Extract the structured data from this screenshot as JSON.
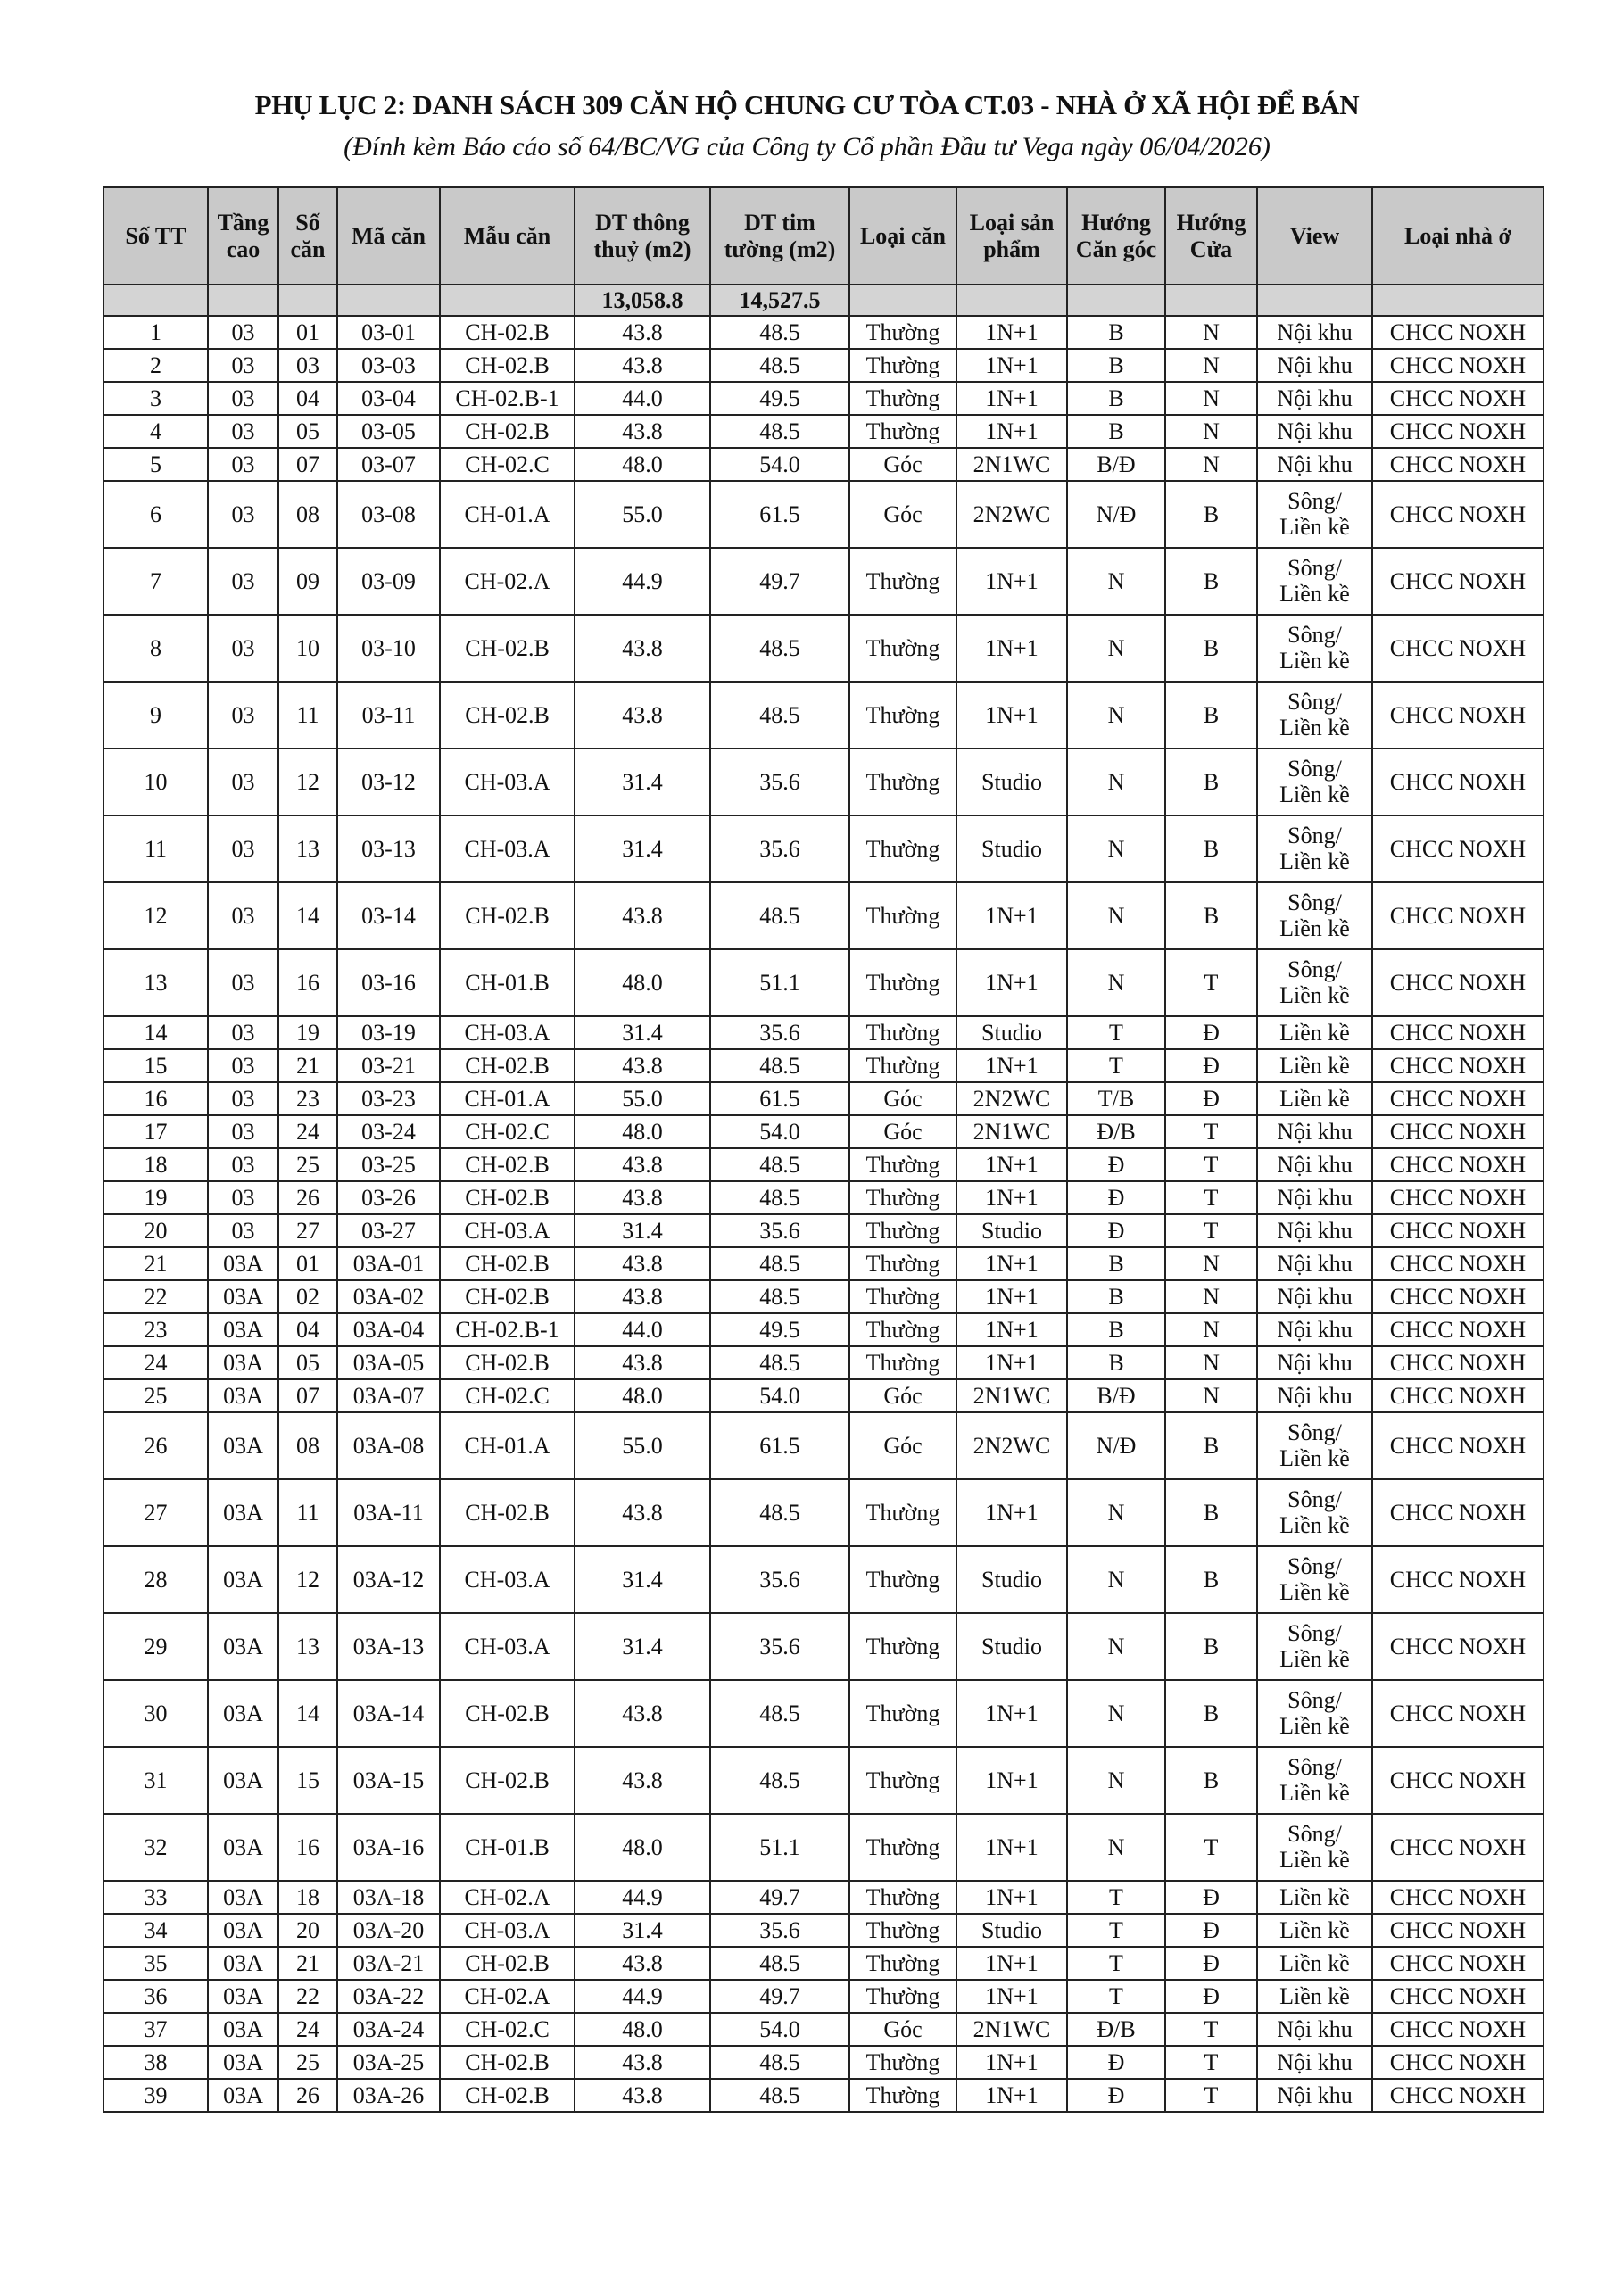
{
  "title": "PHỤ LỤC 2: DANH SÁCH 309 CĂN HỘ CHUNG CƯ TÒA CT.03 - NHÀ Ở XÃ HỘI ĐỂ BÁN",
  "subtitle": "(Đính kèm Báo cáo số 64/BC/VG của Công ty Cổ phần Đầu tư Vega ngày 06/04/2026)",
  "table": {
    "headers": [
      "Số TT",
      "Tầng cao",
      "Số căn",
      "Mã căn",
      "Mẫu căn",
      "DT thông thuỷ (m2)",
      "DT tim tường (m2)",
      "Loại căn",
      "Loại sản phẩm",
      "Hướng Căn góc",
      "Hướng Cửa",
      "View",
      "Loại nhà ở"
    ],
    "totals": [
      "",
      "",
      "",
      "",
      "",
      "13,058.8",
      "14,527.5",
      "",
      "",
      "",
      "",
      "",
      ""
    ],
    "rows": [
      [
        "1",
        "03",
        "01",
        "03-01",
        "CH-02.B",
        "43.8",
        "48.5",
        "Thường",
        "1N+1",
        "B",
        "N",
        "Nội khu",
        "CHCC NOXH"
      ],
      [
        "2",
        "03",
        "03",
        "03-03",
        "CH-02.B",
        "43.8",
        "48.5",
        "Thường",
        "1N+1",
        "B",
        "N",
        "Nội khu",
        "CHCC NOXH"
      ],
      [
        "3",
        "03",
        "04",
        "03-04",
        "CH-02.B-1",
        "44.0",
        "49.5",
        "Thường",
        "1N+1",
        "B",
        "N",
        "Nội khu",
        "CHCC NOXH"
      ],
      [
        "4",
        "03",
        "05",
        "03-05",
        "CH-02.B",
        "43.8",
        "48.5",
        "Thường",
        "1N+1",
        "B",
        "N",
        "Nội khu",
        "CHCC NOXH"
      ],
      [
        "5",
        "03",
        "07",
        "03-07",
        "CH-02.C",
        "48.0",
        "54.0",
        "Góc",
        "2N1WC",
        "B/Đ",
        "N",
        "Nội khu",
        "CHCC NOXH"
      ],
      [
        "6",
        "03",
        "08",
        "03-08",
        "CH-01.A",
        "55.0",
        "61.5",
        "Góc",
        "2N2WC",
        "N/Đ",
        "B",
        "Sông/\nLiền kề",
        "CHCC NOXH"
      ],
      [
        "7",
        "03",
        "09",
        "03-09",
        "CH-02.A",
        "44.9",
        "49.7",
        "Thường",
        "1N+1",
        "N",
        "B",
        "Sông/\nLiền kề",
        "CHCC NOXH"
      ],
      [
        "8",
        "03",
        "10",
        "03-10",
        "CH-02.B",
        "43.8",
        "48.5",
        "Thường",
        "1N+1",
        "N",
        "B",
        "Sông/\nLiền kề",
        "CHCC NOXH"
      ],
      [
        "9",
        "03",
        "11",
        "03-11",
        "CH-02.B",
        "43.8",
        "48.5",
        "Thường",
        "1N+1",
        "N",
        "B",
        "Sông/\nLiền kề",
        "CHCC NOXH"
      ],
      [
        "10",
        "03",
        "12",
        "03-12",
        "CH-03.A",
        "31.4",
        "35.6",
        "Thường",
        "Studio",
        "N",
        "B",
        "Sông/\nLiền kề",
        "CHCC NOXH"
      ],
      [
        "11",
        "03",
        "13",
        "03-13",
        "CH-03.A",
        "31.4",
        "35.6",
        "Thường",
        "Studio",
        "N",
        "B",
        "Sông/\nLiền kề",
        "CHCC NOXH"
      ],
      [
        "12",
        "03",
        "14",
        "03-14",
        "CH-02.B",
        "43.8",
        "48.5",
        "Thường",
        "1N+1",
        "N",
        "B",
        "Sông/\nLiền kề",
        "CHCC NOXH"
      ],
      [
        "13",
        "03",
        "16",
        "03-16",
        "CH-01.B",
        "48.0",
        "51.1",
        "Thường",
        "1N+1",
        "N",
        "T",
        "Sông/\nLiền kề",
        "CHCC NOXH"
      ],
      [
        "14",
        "03",
        "19",
        "03-19",
        "CH-03.A",
        "31.4",
        "35.6",
        "Thường",
        "Studio",
        "T",
        "Đ",
        "Liền kề",
        "CHCC NOXH"
      ],
      [
        "15",
        "03",
        "21",
        "03-21",
        "CH-02.B",
        "43.8",
        "48.5",
        "Thường",
        "1N+1",
        "T",
        "Đ",
        "Liền kề",
        "CHCC NOXH"
      ],
      [
        "16",
        "03",
        "23",
        "03-23",
        "CH-01.A",
        "55.0",
        "61.5",
        "Góc",
        "2N2WC",
        "T/B",
        "Đ",
        "Liền kề",
        "CHCC NOXH"
      ],
      [
        "17",
        "03",
        "24",
        "03-24",
        "CH-02.C",
        "48.0",
        "54.0",
        "Góc",
        "2N1WC",
        "Đ/B",
        "T",
        "Nội khu",
        "CHCC NOXH"
      ],
      [
        "18",
        "03",
        "25",
        "03-25",
        "CH-02.B",
        "43.8",
        "48.5",
        "Thường",
        "1N+1",
        "Đ",
        "T",
        "Nội khu",
        "CHCC NOXH"
      ],
      [
        "19",
        "03",
        "26",
        "03-26",
        "CH-02.B",
        "43.8",
        "48.5",
        "Thường",
        "1N+1",
        "Đ",
        "T",
        "Nội khu",
        "CHCC NOXH"
      ],
      [
        "20",
        "03",
        "27",
        "03-27",
        "CH-03.A",
        "31.4",
        "35.6",
        "Thường",
        "Studio",
        "Đ",
        "T",
        "Nội khu",
        "CHCC NOXH"
      ],
      [
        "21",
        "03A",
        "01",
        "03A-01",
        "CH-02.B",
        "43.8",
        "48.5",
        "Thường",
        "1N+1",
        "B",
        "N",
        "Nội khu",
        "CHCC NOXH"
      ],
      [
        "22",
        "03A",
        "02",
        "03A-02",
        "CH-02.B",
        "43.8",
        "48.5",
        "Thường",
        "1N+1",
        "B",
        "N",
        "Nội khu",
        "CHCC NOXH"
      ],
      [
        "23",
        "03A",
        "04",
        "03A-04",
        "CH-02.B-1",
        "44.0",
        "49.5",
        "Thường",
        "1N+1",
        "B",
        "N",
        "Nội khu",
        "CHCC NOXH"
      ],
      [
        "24",
        "03A",
        "05",
        "03A-05",
        "CH-02.B",
        "43.8",
        "48.5",
        "Thường",
        "1N+1",
        "B",
        "N",
        "Nội khu",
        "CHCC NOXH"
      ],
      [
        "25",
        "03A",
        "07",
        "03A-07",
        "CH-02.C",
        "48.0",
        "54.0",
        "Góc",
        "2N1WC",
        "B/Đ",
        "N",
        "Nội khu",
        "CHCC NOXH"
      ],
      [
        "26",
        "03A",
        "08",
        "03A-08",
        "CH-01.A",
        "55.0",
        "61.5",
        "Góc",
        "2N2WC",
        "N/Đ",
        "B",
        "Sông/\nLiền kề",
        "CHCC NOXH"
      ],
      [
        "27",
        "03A",
        "11",
        "03A-11",
        "CH-02.B",
        "43.8",
        "48.5",
        "Thường",
        "1N+1",
        "N",
        "B",
        "Sông/\nLiền kề",
        "CHCC NOXH"
      ],
      [
        "28",
        "03A",
        "12",
        "03A-12",
        "CH-03.A",
        "31.4",
        "35.6",
        "Thường",
        "Studio",
        "N",
        "B",
        "Sông/\nLiền kề",
        "CHCC NOXH"
      ],
      [
        "29",
        "03A",
        "13",
        "03A-13",
        "CH-03.A",
        "31.4",
        "35.6",
        "Thường",
        "Studio",
        "N",
        "B",
        "Sông/\nLiền kề",
        "CHCC NOXH"
      ],
      [
        "30",
        "03A",
        "14",
        "03A-14",
        "CH-02.B",
        "43.8",
        "48.5",
        "Thường",
        "1N+1",
        "N",
        "B",
        "Sông/\nLiền kề",
        "CHCC NOXH"
      ],
      [
        "31",
        "03A",
        "15",
        "03A-15",
        "CH-02.B",
        "43.8",
        "48.5",
        "Thường",
        "1N+1",
        "N",
        "B",
        "Sông/\nLiền kề",
        "CHCC NOXH"
      ],
      [
        "32",
        "03A",
        "16",
        "03A-16",
        "CH-01.B",
        "48.0",
        "51.1",
        "Thường",
        "1N+1",
        "N",
        "T",
        "Sông/\nLiền kề",
        "CHCC NOXH"
      ],
      [
        "33",
        "03A",
        "18",
        "03A-18",
        "CH-02.A",
        "44.9",
        "49.7",
        "Thường",
        "1N+1",
        "T",
        "Đ",
        "Liền kề",
        "CHCC NOXH"
      ],
      [
        "34",
        "03A",
        "20",
        "03A-20",
        "CH-03.A",
        "31.4",
        "35.6",
        "Thường",
        "Studio",
        "T",
        "Đ",
        "Liền kề",
        "CHCC NOXH"
      ],
      [
        "35",
        "03A",
        "21",
        "03A-21",
        "CH-02.B",
        "43.8",
        "48.5",
        "Thường",
        "1N+1",
        "T",
        "Đ",
        "Liền kề",
        "CHCC NOXH"
      ],
      [
        "36",
        "03A",
        "22",
        "03A-22",
        "CH-02.A",
        "44.9",
        "49.7",
        "Thường",
        "1N+1",
        "T",
        "Đ",
        "Liền kề",
        "CHCC NOXH"
      ],
      [
        "37",
        "03A",
        "24",
        "03A-24",
        "CH-02.C",
        "48.0",
        "54.0",
        "Góc",
        "2N1WC",
        "Đ/B",
        "T",
        "Nội khu",
        "CHCC NOXH"
      ],
      [
        "38",
        "03A",
        "25",
        "03A-25",
        "CH-02.B",
        "43.8",
        "48.5",
        "Thường",
        "1N+1",
        "Đ",
        "T",
        "Nội khu",
        "CHCC NOXH"
      ],
      [
        "39",
        "03A",
        "26",
        "03A-26",
        "CH-02.B",
        "43.8",
        "48.5",
        "Thường",
        "1N+1",
        "Đ",
        "T",
        "Nội khu",
        "CHCC NOXH"
      ]
    ]
  }
}
